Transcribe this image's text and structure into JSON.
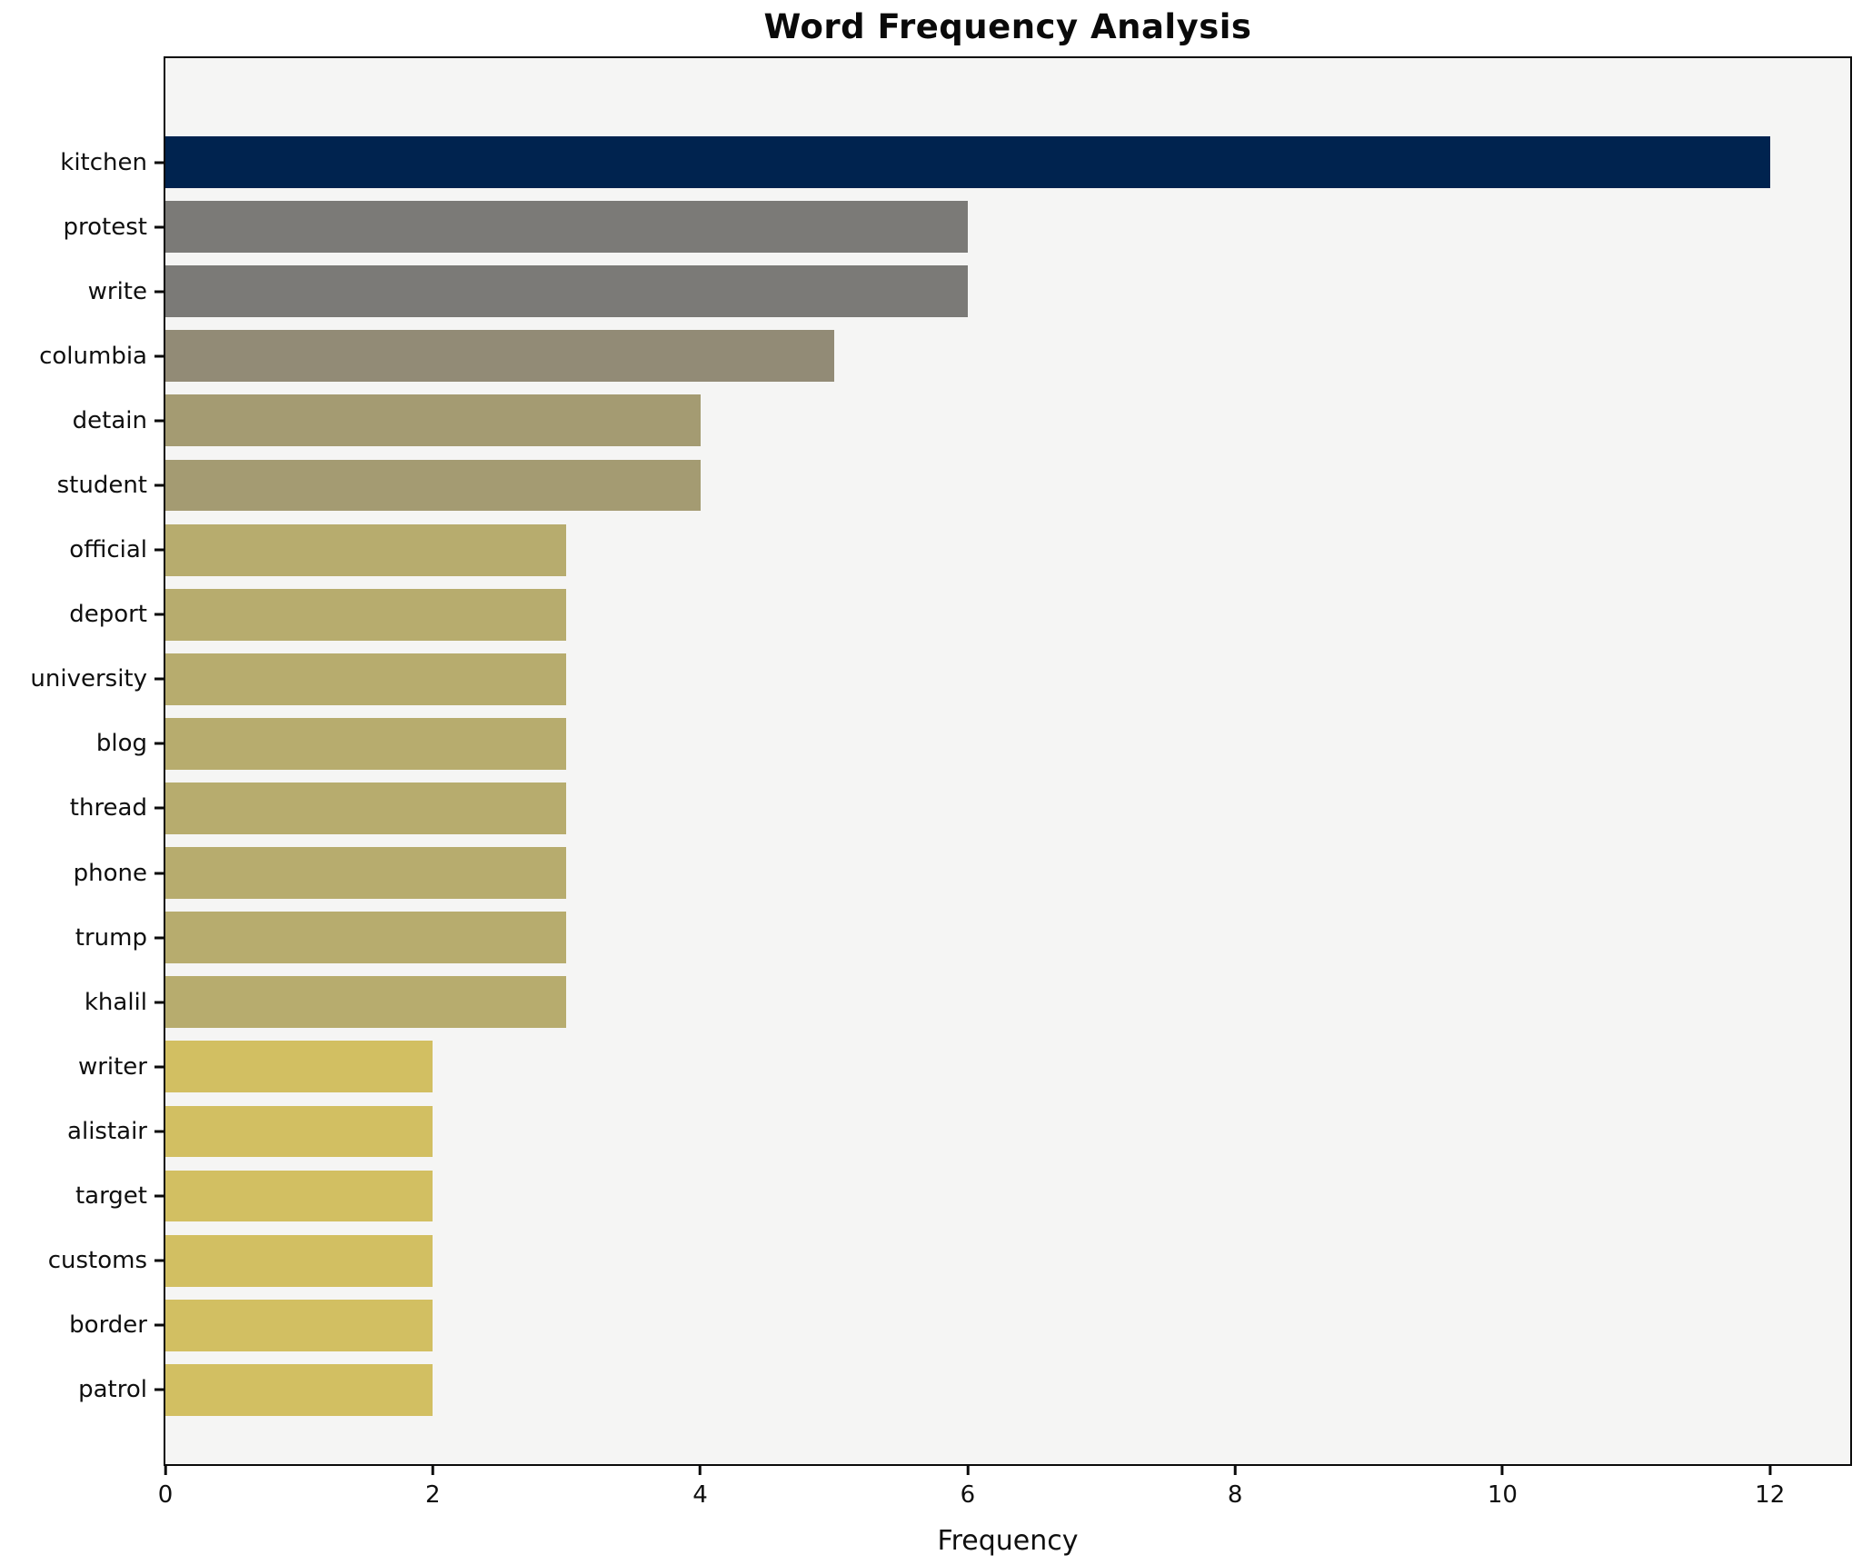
{
  "chart_data": {
    "type": "bar",
    "orientation": "horizontal",
    "title": "Word Frequency Analysis",
    "xlabel": "Frequency",
    "ylabel": "",
    "xlim": [
      0,
      12.6
    ],
    "xticks": [
      0,
      2,
      4,
      6,
      8,
      10,
      12
    ],
    "grid": false,
    "legend": false,
    "categories": [
      "kitchen",
      "protest",
      "write",
      "columbia",
      "detain",
      "student",
      "official",
      "deport",
      "university",
      "blog",
      "thread",
      "phone",
      "trump",
      "khalil",
      "writer",
      "alistair",
      "target",
      "customs",
      "border",
      "patrol"
    ],
    "values": [
      12,
      6,
      6,
      5,
      4,
      4,
      3,
      3,
      3,
      3,
      3,
      3,
      3,
      3,
      2,
      2,
      2,
      2,
      2,
      2
    ],
    "bar_colors": [
      "#00234f",
      "#7b7a77",
      "#7b7a77",
      "#928b76",
      "#a49b72",
      "#a49b72",
      "#b7ac6e",
      "#b7ac6e",
      "#b7ac6e",
      "#b7ac6e",
      "#b7ac6e",
      "#b7ac6e",
      "#b7ac6e",
      "#b7ac6e",
      "#d2bf62",
      "#d2bf62",
      "#d2bf62",
      "#d2bf62",
      "#d2bf62",
      "#d2bf62"
    ]
  },
  "colors": {
    "figure_bg": "#ffffff",
    "plot_bg": "#f5f5f4",
    "spine": "#0a0a0a",
    "text": "#0f0f0f"
  }
}
